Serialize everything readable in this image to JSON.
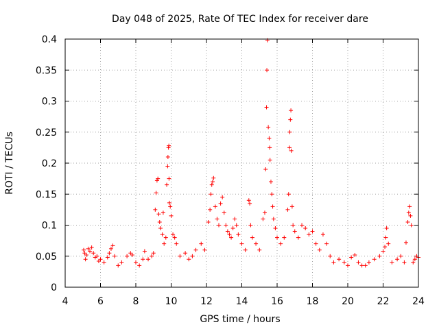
{
  "chart_data": {
    "type": "scatter",
    "title": "Day 048 of 2025, Rate Of TEC Index for receiver dare",
    "xlabel": "GPS time / hours",
    "ylabel": "ROTI / TECUs",
    "xlim": [
      4,
      24
    ],
    "ylim": [
      0,
      0.4
    ],
    "xticks": [
      4,
      6,
      8,
      10,
      12,
      14,
      16,
      18,
      20,
      22,
      24
    ],
    "yticks": [
      0,
      0.05,
      0.1,
      0.15,
      0.2,
      0.25,
      0.3,
      0.35,
      0.4
    ],
    "xtick_labels": [
      "4",
      "6",
      "8",
      "10",
      "12",
      "14",
      "16",
      "18",
      "20",
      "22",
      "24"
    ],
    "ytick_labels": [
      "0",
      "0.05",
      "0.1",
      "0.15",
      "0.2",
      "0.25",
      "0.3",
      "0.35",
      "0.4"
    ],
    "grid": true,
    "marker": "+",
    "color": "#ff0000",
    "series": [
      {
        "name": "ROTI",
        "points": [
          [
            5.05,
            0.06
          ],
          [
            5.1,
            0.055
          ],
          [
            5.15,
            0.045
          ],
          [
            5.2,
            0.052
          ],
          [
            5.3,
            0.062
          ],
          [
            5.4,
            0.058
          ],
          [
            5.5,
            0.064
          ],
          [
            5.6,
            0.055
          ],
          [
            5.7,
            0.048
          ],
          [
            5.8,
            0.05
          ],
          [
            5.9,
            0.042
          ],
          [
            6.0,
            0.045
          ],
          [
            6.2,
            0.04
          ],
          [
            6.4,
            0.048
          ],
          [
            6.5,
            0.055
          ],
          [
            6.6,
            0.062
          ],
          [
            6.7,
            0.067
          ],
          [
            6.8,
            0.05
          ],
          [
            7.0,
            0.035
          ],
          [
            7.2,
            0.04
          ],
          [
            7.5,
            0.05
          ],
          [
            7.7,
            0.055
          ],
          [
            7.8,
            0.052
          ],
          [
            8.0,
            0.04
          ],
          [
            8.2,
            0.035
          ],
          [
            8.4,
            0.045
          ],
          [
            8.5,
            0.058
          ],
          [
            8.7,
            0.045
          ],
          [
            8.9,
            0.05
          ],
          [
            9.0,
            0.055
          ],
          [
            9.1,
            0.125
          ],
          [
            9.15,
            0.152
          ],
          [
            9.2,
            0.172
          ],
          [
            9.25,
            0.175
          ],
          [
            9.3,
            0.118
          ],
          [
            9.35,
            0.105
          ],
          [
            9.4,
            0.095
          ],
          [
            9.5,
            0.085
          ],
          [
            9.55,
            0.12
          ],
          [
            9.6,
            0.07
          ],
          [
            9.7,
            0.08
          ],
          [
            9.75,
            0.165
          ],
          [
            9.8,
            0.195
          ],
          [
            9.82,
            0.21
          ],
          [
            9.85,
            0.225
          ],
          [
            9.87,
            0.228
          ],
          [
            9.88,
            0.175
          ],
          [
            9.9,
            0.136
          ],
          [
            9.95,
            0.13
          ],
          [
            10.0,
            0.115
          ],
          [
            10.1,
            0.085
          ],
          [
            10.2,
            0.08
          ],
          [
            10.3,
            0.07
          ],
          [
            10.5,
            0.05
          ],
          [
            10.8,
            0.055
          ],
          [
            11.0,
            0.045
          ],
          [
            11.2,
            0.05
          ],
          [
            11.4,
            0.06
          ],
          [
            11.7,
            0.07
          ],
          [
            11.9,
            0.06
          ],
          [
            12.1,
            0.105
          ],
          [
            12.2,
            0.125
          ],
          [
            12.25,
            0.15
          ],
          [
            12.3,
            0.165
          ],
          [
            12.35,
            0.17
          ],
          [
            12.4,
            0.176
          ],
          [
            12.5,
            0.13
          ],
          [
            12.6,
            0.11
          ],
          [
            12.7,
            0.1
          ],
          [
            12.8,
            0.135
          ],
          [
            12.9,
            0.145
          ],
          [
            13.0,
            0.12
          ],
          [
            13.1,
            0.1
          ],
          [
            13.2,
            0.09
          ],
          [
            13.3,
            0.085
          ],
          [
            13.4,
            0.08
          ],
          [
            13.5,
            0.095
          ],
          [
            13.6,
            0.11
          ],
          [
            13.7,
            0.1
          ],
          [
            13.8,
            0.085
          ],
          [
            14.0,
            0.07
          ],
          [
            14.2,
            0.06
          ],
          [
            14.4,
            0.14
          ],
          [
            14.45,
            0.135
          ],
          [
            14.5,
            0.1
          ],
          [
            14.6,
            0.08
          ],
          [
            14.8,
            0.07
          ],
          [
            15.0,
            0.06
          ],
          [
            15.2,
            0.11
          ],
          [
            15.3,
            0.12
          ],
          [
            15.35,
            0.19
          ],
          [
            15.4,
            0.29
          ],
          [
            15.42,
            0.35
          ],
          [
            15.45,
            0.398
          ],
          [
            15.5,
            0.258
          ],
          [
            15.55,
            0.24
          ],
          [
            15.58,
            0.225
          ],
          [
            15.6,
            0.205
          ],
          [
            15.65,
            0.17
          ],
          [
            15.7,
            0.15
          ],
          [
            15.75,
            0.13
          ],
          [
            15.8,
            0.11
          ],
          [
            15.9,
            0.095
          ],
          [
            16.0,
            0.08
          ],
          [
            16.2,
            0.07
          ],
          [
            16.4,
            0.08
          ],
          [
            16.6,
            0.125
          ],
          [
            16.65,
            0.15
          ],
          [
            16.7,
            0.225
          ],
          [
            16.72,
            0.25
          ],
          [
            16.75,
            0.27
          ],
          [
            16.78,
            0.285
          ],
          [
            16.8,
            0.22
          ],
          [
            16.85,
            0.13
          ],
          [
            16.9,
            0.1
          ],
          [
            17.0,
            0.09
          ],
          [
            17.2,
            0.08
          ],
          [
            17.4,
            0.1
          ],
          [
            17.6,
            0.095
          ],
          [
            17.8,
            0.085
          ],
          [
            18.0,
            0.09
          ],
          [
            18.2,
            0.07
          ],
          [
            18.4,
            0.06
          ],
          [
            18.6,
            0.085
          ],
          [
            18.8,
            0.07
          ],
          [
            19.0,
            0.05
          ],
          [
            19.2,
            0.04
          ],
          [
            19.5,
            0.045
          ],
          [
            19.8,
            0.04
          ],
          [
            20.0,
            0.035
          ],
          [
            20.2,
            0.048
          ],
          [
            20.4,
            0.052
          ],
          [
            20.6,
            0.04
          ],
          [
            20.8,
            0.035
          ],
          [
            21.0,
            0.035
          ],
          [
            21.2,
            0.04
          ],
          [
            21.5,
            0.045
          ],
          [
            21.8,
            0.05
          ],
          [
            22.0,
            0.058
          ],
          [
            22.1,
            0.065
          ],
          [
            22.15,
            0.08
          ],
          [
            22.2,
            0.095
          ],
          [
            22.3,
            0.07
          ],
          [
            22.5,
            0.04
          ],
          [
            22.8,
            0.045
          ],
          [
            23.0,
            0.05
          ],
          [
            23.2,
            0.04
          ],
          [
            23.3,
            0.072
          ],
          [
            23.4,
            0.105
          ],
          [
            23.45,
            0.12
          ],
          [
            23.5,
            0.13
          ],
          [
            23.55,
            0.115
          ],
          [
            23.6,
            0.1
          ],
          [
            23.7,
            0.04
          ],
          [
            23.8,
            0.045
          ],
          [
            23.9,
            0.05
          ],
          [
            24.0,
            0.048
          ]
        ]
      }
    ]
  }
}
